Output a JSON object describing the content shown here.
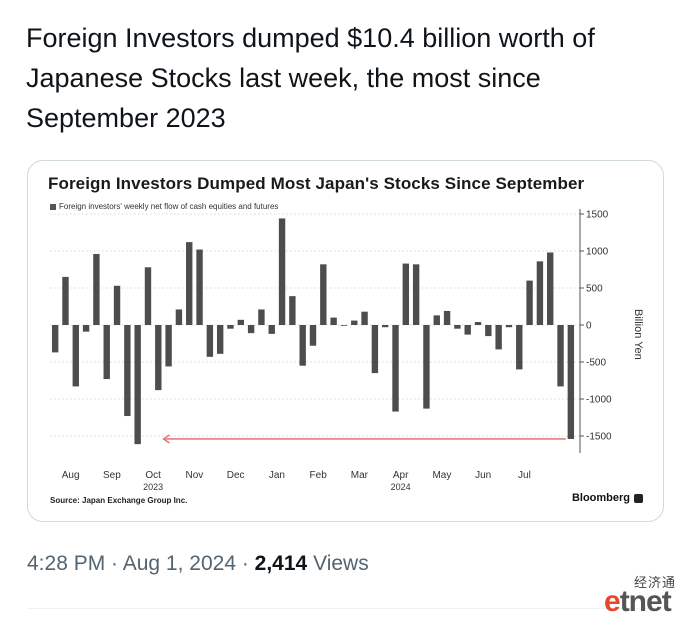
{
  "tweet": {
    "text": "Foreign Investors dumped $10.4 billion worth of Japanese Stocks last week, the most since September 2023",
    "time": "4:28 PM",
    "sep1": " · ",
    "date": "Aug 1, 2024",
    "sep2": " · ",
    "views_count": "2,414",
    "views_label": " Views"
  },
  "card": {
    "source": "Source: Japan Exchange Group Inc.",
    "brand": "Bloomberg"
  },
  "watermark": {
    "cn": "经济通",
    "logo_e": "e",
    "logo_rest": "tnet"
  },
  "colors": {
    "bar": "#4d4d4d",
    "arrow": "#e06666",
    "grid": "#cccccc"
  },
  "chart_data": {
    "type": "bar",
    "title": "Foreign Investors Dumped Most Japan's Stocks Since September",
    "legend": [
      "Foreign investors' weekly net flow of cash equities and futures"
    ],
    "ylabel": "Billion Yen",
    "ylim": [
      -1800,
      1550
    ],
    "yticks": [
      1500,
      1000,
      500,
      0,
      -500,
      -1000,
      -1500
    ],
    "ytick_labels": [
      "1500",
      "1000",
      "500",
      "0",
      "-500",
      "-1000",
      "-1500"
    ],
    "xticks": [
      {
        "label": "Aug",
        "index": 1.5
      },
      {
        "label": "Sep",
        "index": 5.5
      },
      {
        "label": "Oct",
        "index": 9.5
      },
      {
        "label": "Nov",
        "index": 13.5
      },
      {
        "label": "Dec",
        "index": 17.5
      },
      {
        "label": "Jan",
        "index": 21.5
      },
      {
        "label": "Feb",
        "index": 25.5
      },
      {
        "label": "Mar",
        "index": 29.5
      },
      {
        "label": "Apr",
        "index": 33.5
      },
      {
        "label": "May",
        "index": 37.5
      },
      {
        "label": "Jun",
        "index": 41.5
      },
      {
        "label": "Jul",
        "index": 45.5
      }
    ],
    "year_labels": [
      {
        "label": "2023",
        "index": 9.5
      },
      {
        "label": "2024",
        "index": 33.5
      }
    ],
    "values": [
      -370,
      650,
      -830,
      -90,
      960,
      -730,
      530,
      -1230,
      -1610,
      780,
      -880,
      -560,
      210,
      1120,
      1020,
      -430,
      -390,
      -50,
      70,
      -110,
      210,
      -120,
      1440,
      390,
      -550,
      -280,
      820,
      100,
      0,
      60,
      180,
      -650,
      -30,
      -1170,
      830,
      820,
      -1130,
      130,
      190,
      -50,
      -130,
      40,
      -150,
      -330,
      -30,
      -600,
      600,
      860,
      980,
      -830,
      -1540
    ],
    "annotation": {
      "type": "arrow",
      "from_index": 49.5,
      "to_index": 10.5,
      "y": -1540
    }
  }
}
